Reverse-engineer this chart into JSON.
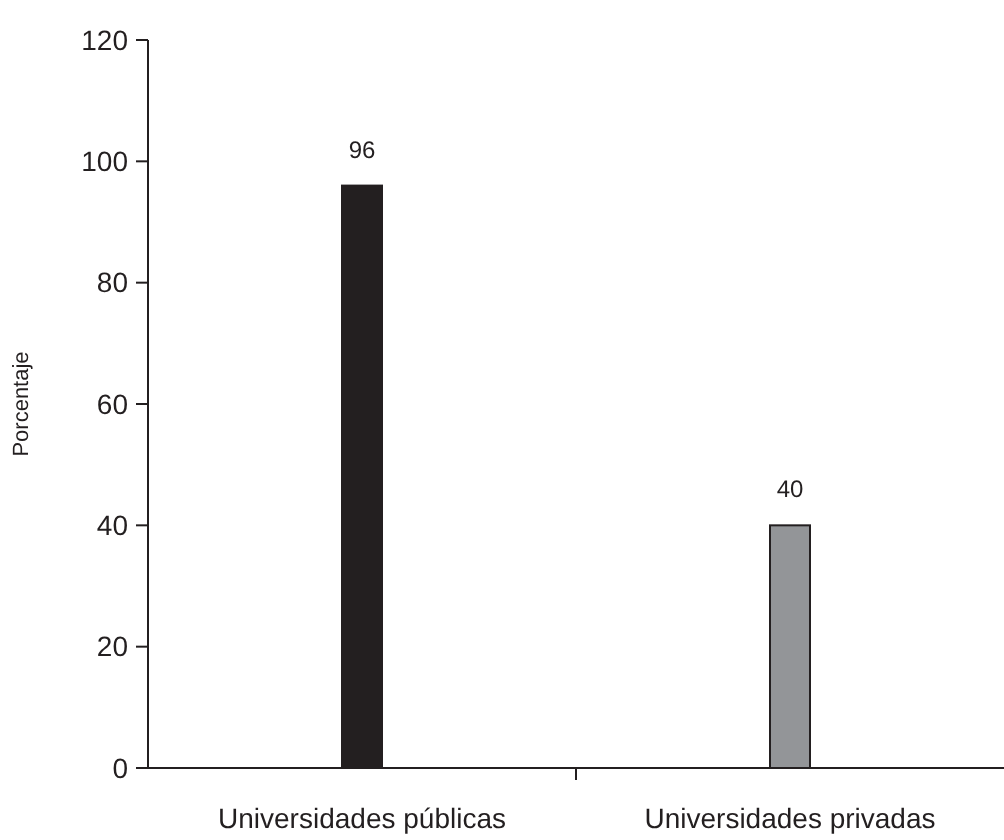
{
  "chart_data": {
    "type": "bar",
    "ylabel": "Porcentaje",
    "categories": [
      "Universidades públicas",
      "Universidades privadas"
    ],
    "values": [
      96,
      40
    ],
    "colors": [
      "#231f20",
      "#939598"
    ],
    "ylim": [
      0,
      120
    ],
    "yticks": [
      0,
      20,
      40,
      60,
      80,
      100,
      120
    ],
    "data_labels": true,
    "grid": false
  }
}
